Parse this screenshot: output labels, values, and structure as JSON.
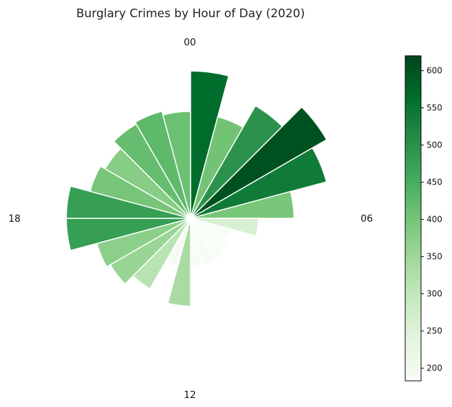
{
  "chart_data": {
    "type": "polar-bar",
    "title": "Burglary Crimes by Hour of Day (2020)",
    "hour_labels": [
      "00",
      "06",
      "12",
      "18"
    ],
    "hours": [
      0,
      1,
      2,
      3,
      4,
      5,
      6,
      7,
      8,
      9,
      10,
      11,
      12,
      13,
      14,
      15,
      16,
      17,
      18,
      19,
      20,
      21,
      22,
      23
    ],
    "values": [
      565,
      403,
      498,
      603,
      540,
      397,
      261,
      162,
      170,
      183,
      186,
      183,
      337,
      189,
      312,
      356,
      372,
      477,
      477,
      399,
      379,
      417,
      425,
      410
    ],
    "colorbar": {
      "min": 183,
      "max": 620,
      "ticks": [
        200,
        250,
        300,
        350,
        400,
        450,
        500,
        550,
        600
      ],
      "colormap": "Greens",
      "colors": [
        "#f7fcf5",
        "#e5f5e0",
        "#c7e9c0",
        "#a1d99b",
        "#74c476",
        "#41ab5d",
        "#238b45",
        "#006d2c",
        "#00441b"
      ]
    }
  }
}
